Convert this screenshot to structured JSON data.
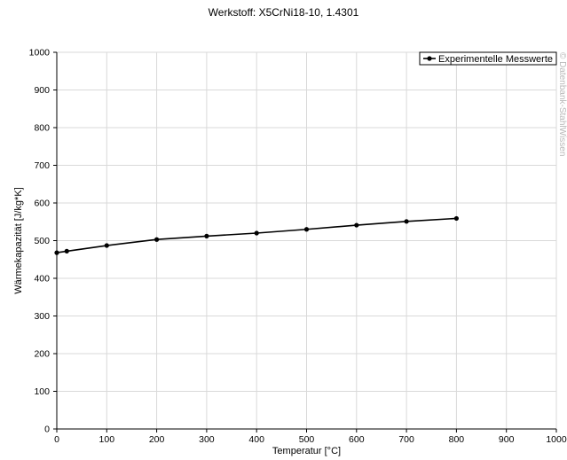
{
  "chart_data": {
    "type": "line",
    "title": "Werkstoff: X5CrNi18-10, 1.4301",
    "xlabel": "Temperatur [°C]",
    "ylabel": "Wärmekapazität [J/kg*K]",
    "xlim": [
      0,
      1000
    ],
    "ylim": [
      0,
      1000
    ],
    "xticks": [
      0,
      100,
      200,
      300,
      400,
      500,
      600,
      700,
      800,
      900,
      1000
    ],
    "yticks": [
      0,
      100,
      200,
      300,
      400,
      500,
      600,
      700,
      800,
      900,
      1000
    ],
    "grid": true,
    "legend_position": "top-right",
    "series": [
      {
        "name": "Experimentelle Messwerte",
        "color": "#000000",
        "x": [
          0,
          20,
          100,
          200,
          300,
          400,
          500,
          600,
          700,
          800
        ],
        "y": [
          468,
          472,
          487,
          503,
          512,
          520,
          530,
          541,
          551,
          559
        ]
      }
    ],
    "watermark": "© Datenbank-StahlWissen"
  }
}
